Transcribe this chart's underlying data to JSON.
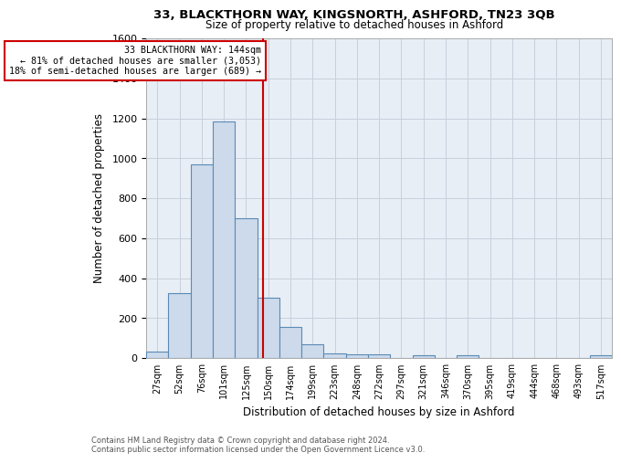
{
  "title": "33, BLACKTHORN WAY, KINGSNORTH, ASHFORD, TN23 3QB",
  "subtitle": "Size of property relative to detached houses in Ashford",
  "xlabel": "Distribution of detached houses by size in Ashford",
  "ylabel": "Number of detached properties",
  "bin_labels": [
    "27sqm",
    "52sqm",
    "76sqm",
    "101sqm",
    "125sqm",
    "150sqm",
    "174sqm",
    "199sqm",
    "223sqm",
    "248sqm",
    "272sqm",
    "297sqm",
    "321sqm",
    "346sqm",
    "370sqm",
    "395sqm",
    "419sqm",
    "444sqm",
    "468sqm",
    "493sqm",
    "517sqm"
  ],
  "bar_values": [
    30,
    325,
    970,
    1185,
    700,
    300,
    155,
    70,
    25,
    18,
    18,
    0,
    14,
    0,
    12,
    0,
    0,
    0,
    0,
    0,
    14
  ],
  "bar_color": "#ccdaeb",
  "bar_edge_color": "#5a8ab5",
  "red_line_color": "#cc0000",
  "annotation_line1": "33 BLACKTHORN WAY: 144sqm",
  "annotation_line2": "← 81% of detached houses are smaller (3,053)",
  "annotation_line3": "18% of semi-detached houses are larger (689) →",
  "annotation_box_color": "#ffffff",
  "annotation_box_edge": "#cc0000",
  "ylim": [
    0,
    1600
  ],
  "yticks": [
    0,
    200,
    400,
    600,
    800,
    1000,
    1200,
    1400,
    1600
  ],
  "grid_color": "#c8d0dc",
  "bg_color": "#e8eef5",
  "footer_line1": "Contains HM Land Registry data © Crown copyright and database right 2024.",
  "footer_line2": "Contains public sector information licensed under the Open Government Licence v3.0."
}
